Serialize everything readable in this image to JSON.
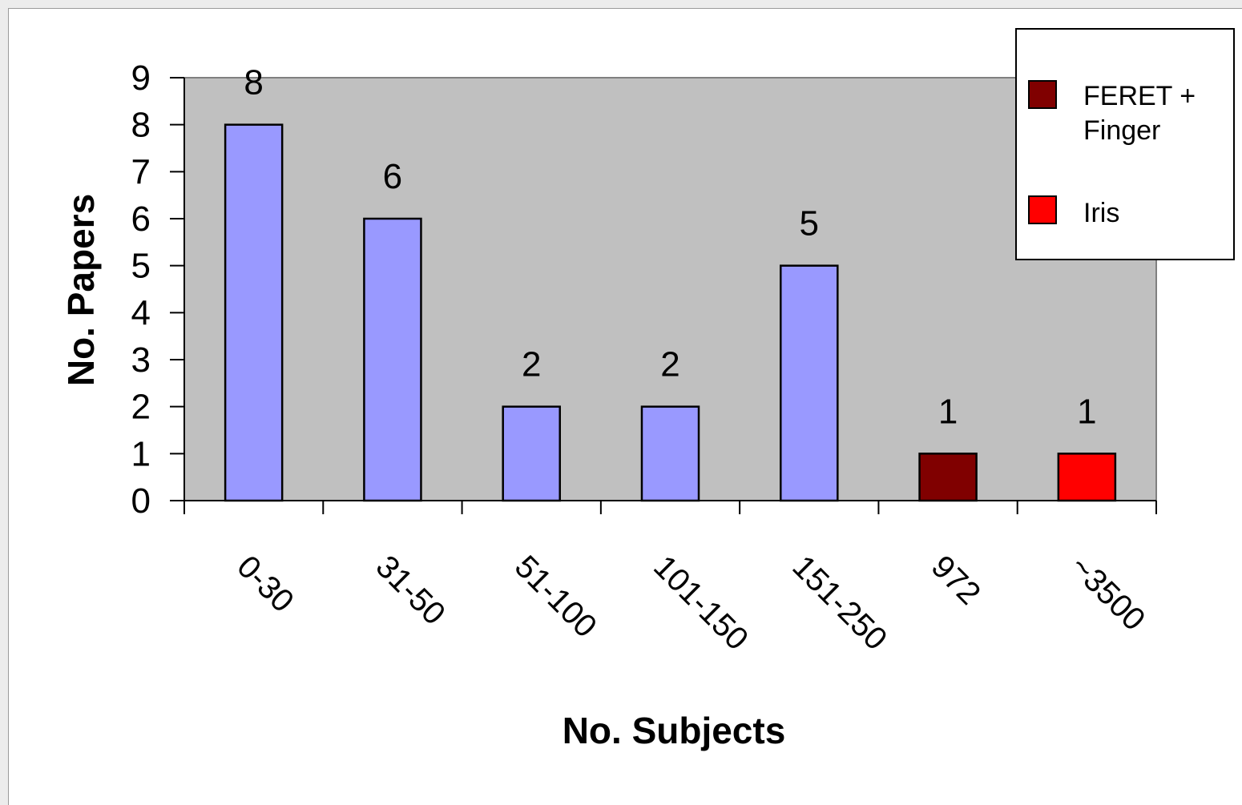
{
  "chart_data": {
    "type": "bar",
    "xlabel": "No. Subjects",
    "ylabel": "No. Papers",
    "ylim": [
      0,
      9
    ],
    "yticks": [
      "0",
      "1",
      "2",
      "3",
      "4",
      "5",
      "6",
      "7",
      "8",
      "9"
    ],
    "categories": [
      "0-30",
      "31-50",
      "51-100",
      "101-150",
      "151-250",
      "972",
      "~3500"
    ],
    "values": [
      8,
      6,
      2,
      2,
      5,
      1,
      1
    ],
    "data_labels": [
      "8",
      "6",
      "2",
      "2",
      "5",
      "1",
      "1"
    ],
    "bar_colors": [
      "#9999ff",
      "#9999ff",
      "#9999ff",
      "#9999ff",
      "#9999ff",
      "#800000",
      "#ff0000"
    ],
    "plot_background": "#c0c0c0",
    "grid": false,
    "legend": {
      "position": "top-right",
      "entries": [
        {
          "label_line1": "FERET +",
          "label_line2": "Finger",
          "color": "#800000"
        },
        {
          "label_line1": "Iris",
          "label_line2": "",
          "color": "#ff0000"
        }
      ]
    }
  }
}
